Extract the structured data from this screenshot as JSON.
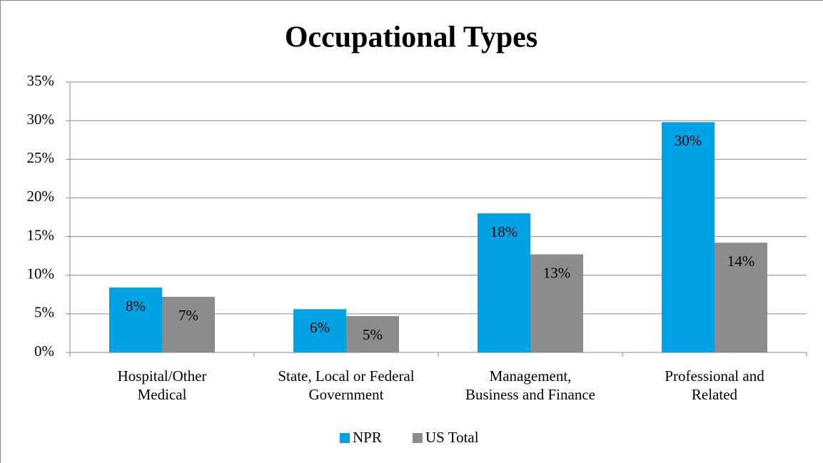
{
  "chart_data": {
    "type": "bar",
    "title": "Occupational Types",
    "categories": [
      "Hospital/Other\nMedical",
      "State, Local or Federal\nGovernment",
      "Management,\nBusiness and Finance",
      "Professional and\nRelated"
    ],
    "series": [
      {
        "name": "NPR",
        "color": "#00a2e3",
        "values": [
          8.4,
          5.6,
          18,
          29.8
        ],
        "value_labels": [
          "8%",
          "6%",
          "18%",
          "30%"
        ]
      },
      {
        "name": "US Total",
        "color": "#8c8c8c",
        "values": [
          7.2,
          4.7,
          12.7,
          14.2
        ],
        "value_labels": [
          "7%",
          "5%",
          "13%",
          "14%"
        ]
      }
    ],
    "ylim": [
      0,
      35
    ],
    "yticks": [
      {
        "value": 0,
        "label": "0%"
      },
      {
        "value": 5,
        "label": "5%"
      },
      {
        "value": 10,
        "label": "10%"
      },
      {
        "value": 15,
        "label": "15%"
      },
      {
        "value": 20,
        "label": "20%"
      },
      {
        "value": 25,
        "label": "25%"
      },
      {
        "value": 30,
        "label": "30%"
      },
      {
        "value": 35,
        "label": "35%"
      }
    ],
    "grid": true,
    "legend": "bottom"
  }
}
